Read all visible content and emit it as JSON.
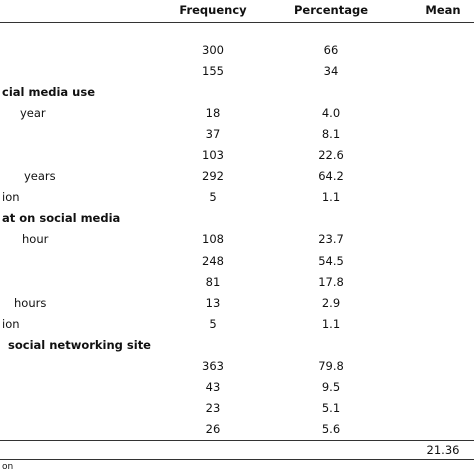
{
  "table": {
    "header": [
      "Frequency",
      "Percentage",
      "Mean"
    ],
    "rows": [
      [
        null,
        "300",
        "66",
        null
      ],
      [
        null,
        "155",
        "34",
        null
      ],
      [
        "cial media use",
        null,
        null,
        null
      ],
      [
        "year",
        "18",
        "4.0",
        null
      ],
      [
        null,
        "37",
        "8.1",
        null
      ],
      [
        null,
        "103",
        "22.6",
        null
      ],
      [
        "years",
        "292",
        "64.2",
        null
      ],
      [
        "ion",
        "5",
        "1.1",
        null
      ],
      [
        "at on social media",
        null,
        null,
        null
      ],
      [
        "hour",
        "108",
        "23.7",
        null
      ],
      [
        null,
        "248",
        "54.5",
        null
      ],
      [
        null,
        "81",
        "17.8",
        null
      ],
      [
        "hours",
        "13",
        "2.9",
        null
      ],
      [
        "ion",
        "5",
        "1.1",
        null
      ],
      [
        "social networking site",
        null,
        null,
        null
      ],
      [
        null,
        "363",
        "79.8",
        null
      ],
      [
        null,
        "43",
        "9.5",
        null
      ],
      [
        null,
        "23",
        "5.1",
        null
      ],
      [
        null,
        "26",
        "5.6",
        null
      ],
      [
        null,
        null,
        null,
        "21.36"
      ]
    ]
  },
  "footnote": "on"
}
